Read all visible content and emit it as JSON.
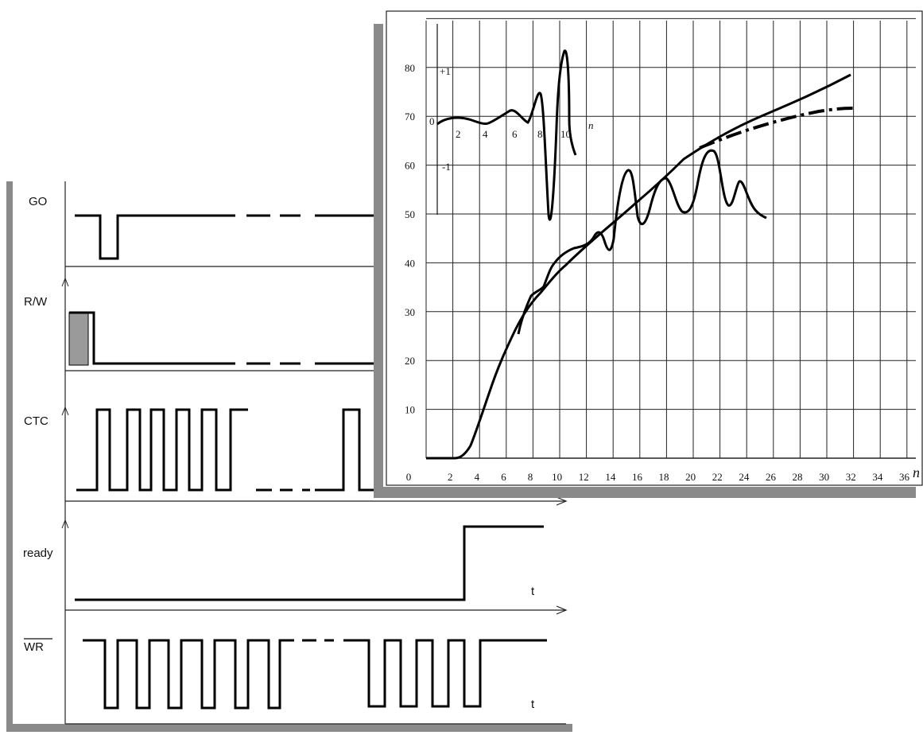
{
  "timing_diagram": {
    "signals": [
      {
        "label": "GO"
      },
      {
        "label": "R/W"
      },
      {
        "label": "CTC"
      },
      {
        "label": "ready"
      },
      {
        "label": "WR",
        "overline": true
      }
    ],
    "time_axis_label": "t"
  },
  "graph": {
    "x_axis_label": "n",
    "x_ticks": [
      "0",
      "2",
      "4",
      "6",
      "8",
      "10",
      "12",
      "14",
      "16",
      "18",
      "20",
      "22",
      "24",
      "26",
      "28",
      "30",
      "32",
      "34",
      "36"
    ],
    "y_ticks": [
      "10",
      "20",
      "30",
      "40",
      "50",
      "60",
      "70",
      "80"
    ],
    "inset": {
      "y_ticks": [
        "+1",
        "0",
        "-1"
      ],
      "x_ticks": [
        "2",
        "4",
        "6",
        "8",
        "10"
      ],
      "x_axis_label": "n"
    }
  }
}
